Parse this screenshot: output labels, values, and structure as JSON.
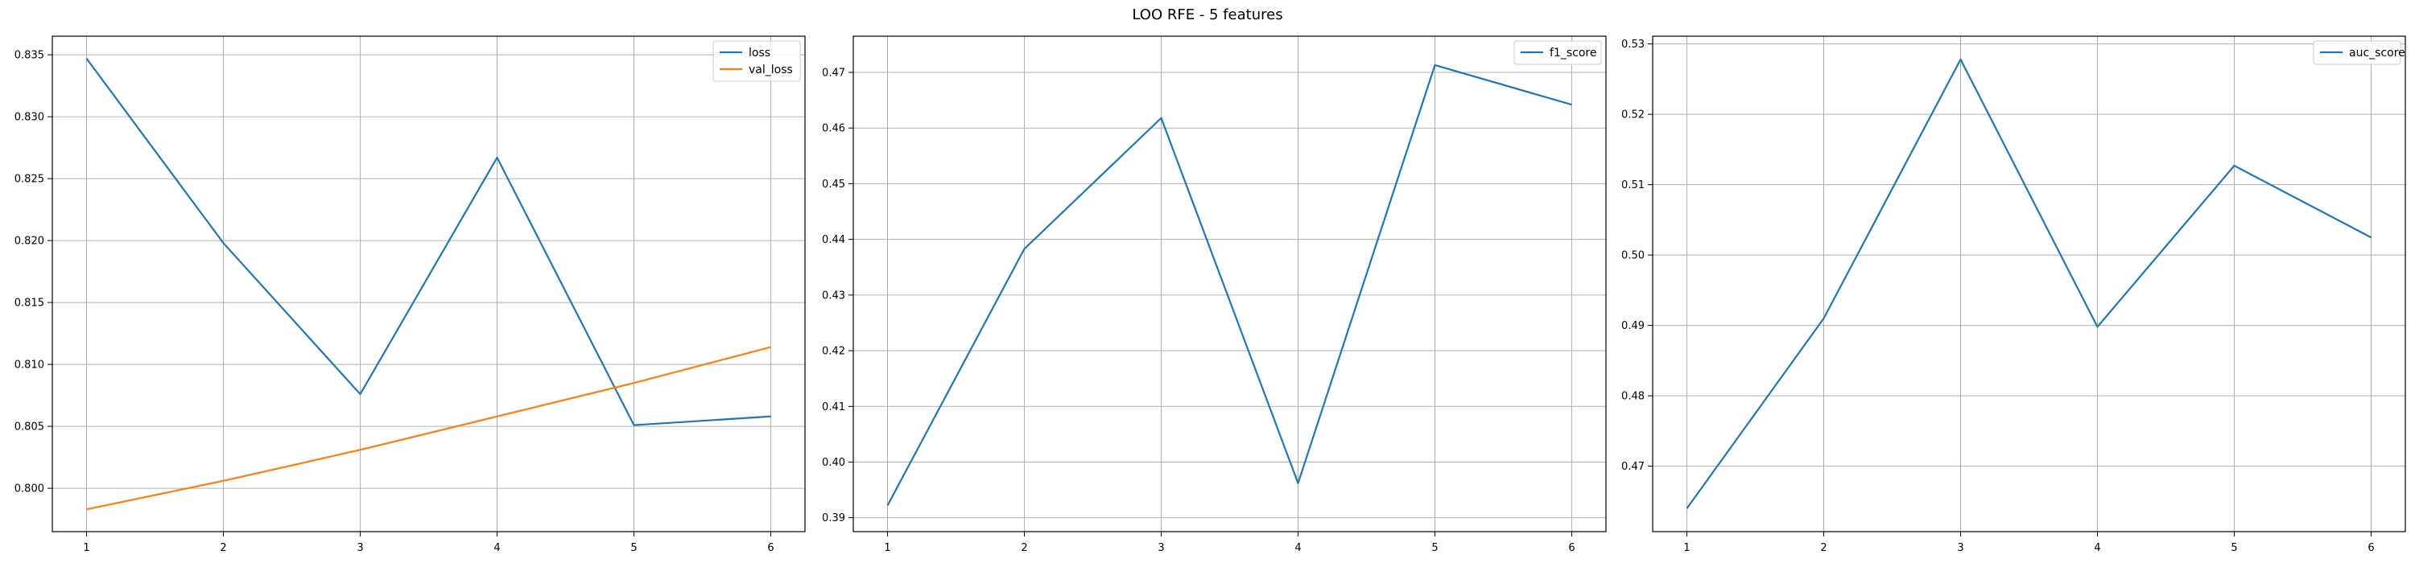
{
  "figure": {
    "title": "LOO RFE - 5 features"
  },
  "chart_data": [
    {
      "type": "line",
      "x": [
        1,
        2,
        3,
        4,
        5,
        6
      ],
      "xticks": [
        "1",
        "2",
        "3",
        "4",
        "5",
        "6"
      ],
      "xlim": [
        0.75,
        6.25
      ],
      "ylim": [
        0.7965,
        0.8365
      ],
      "yticks": [
        0.8,
        0.805,
        0.81,
        0.815,
        0.82,
        0.825,
        0.83,
        0.835
      ],
      "yticklabels": [
        "0.800",
        "0.805",
        "0.810",
        "0.815",
        "0.820",
        "0.825",
        "0.830",
        "0.835"
      ],
      "grid": true,
      "legend": "top-right",
      "series": [
        {
          "name": "loss",
          "color": "#1f77b4",
          "values": [
            0.8347,
            0.8198,
            0.8076,
            0.8267,
            0.8051,
            0.8058
          ]
        },
        {
          "name": "val_loss",
          "color": "#ff7f0e",
          "values": [
            0.7983,
            0.8006,
            0.8031,
            0.8058,
            0.8085,
            0.8114
          ]
        }
      ]
    },
    {
      "type": "line",
      "x": [
        1,
        2,
        3,
        4,
        5,
        6
      ],
      "xticks": [
        "1",
        "2",
        "3",
        "4",
        "5",
        "6"
      ],
      "xlim": [
        0.75,
        6.25
      ],
      "ylim": [
        0.3875,
        0.4765
      ],
      "yticks": [
        0.39,
        0.4,
        0.41,
        0.42,
        0.43,
        0.44,
        0.45,
        0.46,
        0.47
      ],
      "yticklabels": [
        "0.39",
        "0.40",
        "0.41",
        "0.42",
        "0.43",
        "0.44",
        "0.45",
        "0.46",
        "0.47"
      ],
      "grid": true,
      "legend": "top-right",
      "series": [
        {
          "name": "f1_score",
          "color": "#1f77b4",
          "values": [
            0.3922,
            0.4383,
            0.4618,
            0.3962,
            0.4713,
            0.4642
          ]
        }
      ]
    },
    {
      "type": "line",
      "x": [
        1,
        2,
        3,
        4,
        5,
        6
      ],
      "xticks": [
        "1",
        "2",
        "3",
        "4",
        "5",
        "6"
      ],
      "xlim": [
        0.75,
        6.25
      ],
      "ylim": [
        0.4607,
        0.5311
      ],
      "yticks": [
        0.47,
        0.48,
        0.49,
        0.5,
        0.51,
        0.52,
        0.53
      ],
      "yticklabels": [
        "0.47",
        "0.48",
        "0.49",
        "0.50",
        "0.51",
        "0.52",
        "0.53"
      ],
      "grid": true,
      "legend": "top-right",
      "series": [
        {
          "name": "auc_score",
          "color": "#1f77b4",
          "values": [
            0.464,
            0.491,
            0.5278,
            0.4898,
            0.5127,
            0.5025
          ]
        }
      ]
    }
  ]
}
